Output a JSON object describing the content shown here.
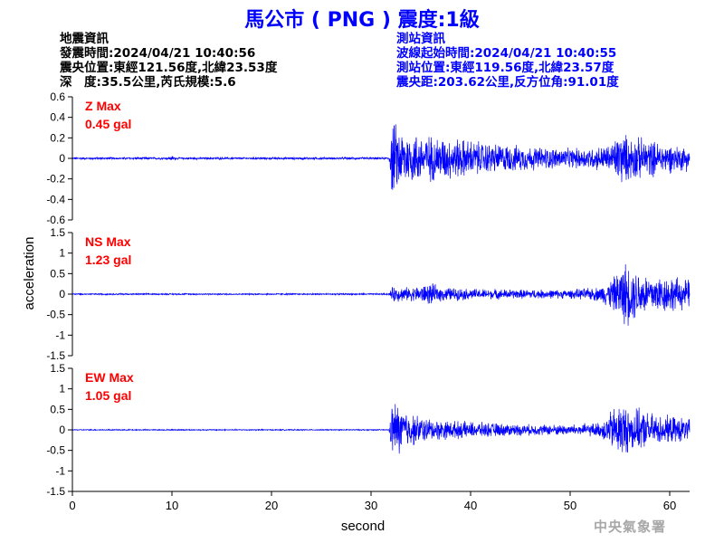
{
  "title": "馬公市 ( PNG ) 震度:1級",
  "earthquake_info": {
    "header": "地震資訊",
    "origin_time": "發震時間:2024/04/21 10:40:56",
    "epicenter": "震央位置:東經121.56度,北緯23.53度",
    "depth_magnitude": "深　度:35.5公里,芮氏規模:5.6"
  },
  "station_info": {
    "header": "測站資訊",
    "wave_start_time": "波線起始時間:2024/04/21 10:40:55",
    "station_location": "測站位置:東經119.56度,北緯23.57度",
    "distance_azimuth": "震央距:203.62公里,反方位角:91.01度"
  },
  "agency": "中央氣象署",
  "colors": {
    "title": "#0000ff",
    "station_info": "#0000ff",
    "trace": "#0000ff",
    "channel_label": "#ff0000",
    "axes": "#000000"
  },
  "chart_data": {
    "type": "line",
    "xlabel": "second",
    "ylabel": "acceleration",
    "xlim": [
      0,
      62
    ],
    "xticks": [
      0,
      10,
      20,
      30,
      40,
      50,
      60
    ],
    "panels": [
      {
        "channel": "Z",
        "label": "Z Max",
        "max_text": "0.45 gal",
        "ylim": [
          -0.6,
          0.6
        ],
        "yticks": [
          0.6,
          0.4,
          0.2,
          0,
          -0.2,
          -0.4,
          -0.6
        ],
        "ytick_labels": [
          "0.6",
          "0.4",
          "0.2",
          "0",
          "-0.2",
          "-0.4",
          "-0.6"
        ],
        "envelope": [
          [
            0,
            0.012
          ],
          [
            9.5,
            0.012
          ],
          [
            10,
            0.03
          ],
          [
            10.5,
            0.012
          ],
          [
            31.8,
            0.012
          ],
          [
            32.1,
            0.42
          ],
          [
            33,
            0.32
          ],
          [
            35,
            0.27
          ],
          [
            37,
            0.24
          ],
          [
            39,
            0.22
          ],
          [
            42,
            0.17
          ],
          [
            45,
            0.14
          ],
          [
            48,
            0.12
          ],
          [
            50,
            0.11
          ],
          [
            52,
            0.12
          ],
          [
            54,
            0.15
          ],
          [
            55,
            0.3
          ],
          [
            56,
            0.24
          ],
          [
            57.5,
            0.22
          ],
          [
            59,
            0.18
          ],
          [
            61,
            0.14
          ],
          [
            62,
            0.14
          ]
        ]
      },
      {
        "channel": "NS",
        "label": "NS Max",
        "max_text": "1.23 gal",
        "ylim": [
          -1.5,
          1.5
        ],
        "yticks": [
          1.5,
          1,
          0.5,
          0,
          -0.5,
          -1,
          -1.5
        ],
        "ytick_labels": [
          "1.5",
          "1",
          "0.5",
          "0",
          "-0.5",
          "-1",
          "-1.5"
        ],
        "envelope": [
          [
            0,
            0.02
          ],
          [
            31.8,
            0.02
          ],
          [
            32.2,
            0.22
          ],
          [
            34,
            0.18
          ],
          [
            36,
            0.3
          ],
          [
            37,
            0.2
          ],
          [
            40,
            0.15
          ],
          [
            45,
            0.13
          ],
          [
            50,
            0.12
          ],
          [
            53,
            0.2
          ],
          [
            54.5,
            0.5
          ],
          [
            55.5,
            0.9
          ],
          [
            56.5,
            0.7
          ],
          [
            58,
            0.55
          ],
          [
            60,
            0.5
          ],
          [
            61,
            0.45
          ],
          [
            62,
            0.4
          ]
        ]
      },
      {
        "channel": "EW",
        "label": "EW Max",
        "max_text": "1.05 gal",
        "ylim": [
          -1.5,
          1.5
        ],
        "yticks": [
          1.5,
          1,
          0.5,
          0,
          -0.5,
          -1,
          -1.5
        ],
        "ytick_labels": [
          "1.5",
          "1",
          "0.5",
          "0",
          "-0.5",
          "-1",
          "-1.5"
        ],
        "envelope": [
          [
            0,
            0.015
          ],
          [
            31.8,
            0.015
          ],
          [
            32.2,
            0.85
          ],
          [
            33,
            0.65
          ],
          [
            34,
            0.45
          ],
          [
            36,
            0.3
          ],
          [
            38,
            0.25
          ],
          [
            40,
            0.22
          ],
          [
            43,
            0.18
          ],
          [
            46,
            0.15
          ],
          [
            50,
            0.15
          ],
          [
            53,
            0.2
          ],
          [
            55,
            0.8
          ],
          [
            56,
            0.6
          ],
          [
            57,
            0.55
          ],
          [
            59,
            0.4
          ],
          [
            61,
            0.35
          ],
          [
            62,
            0.3
          ]
        ]
      }
    ]
  }
}
